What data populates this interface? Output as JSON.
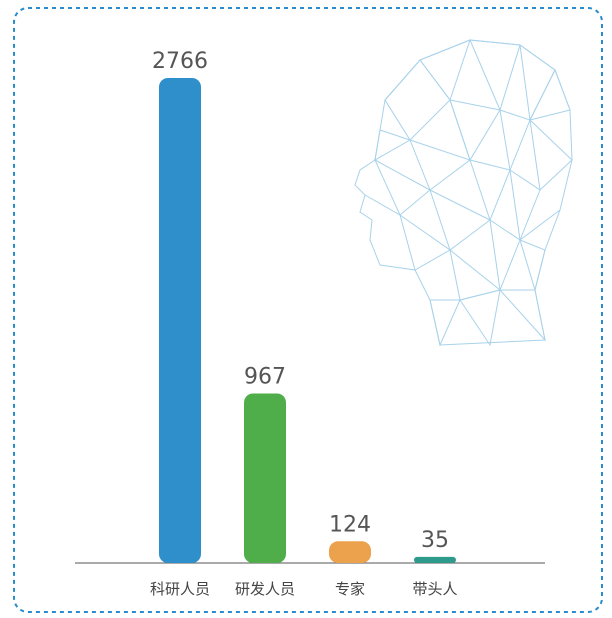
{
  "chart_data": {
    "type": "bar",
    "categories": [
      "科研人员",
      "研发人员",
      "专家",
      "带头人"
    ],
    "values": [
      2766,
      967,
      124,
      35
    ],
    "colors": [
      "#2e8fcb",
      "#4fae4a",
      "#eca24c",
      "#2e9a8c"
    ]
  }
}
